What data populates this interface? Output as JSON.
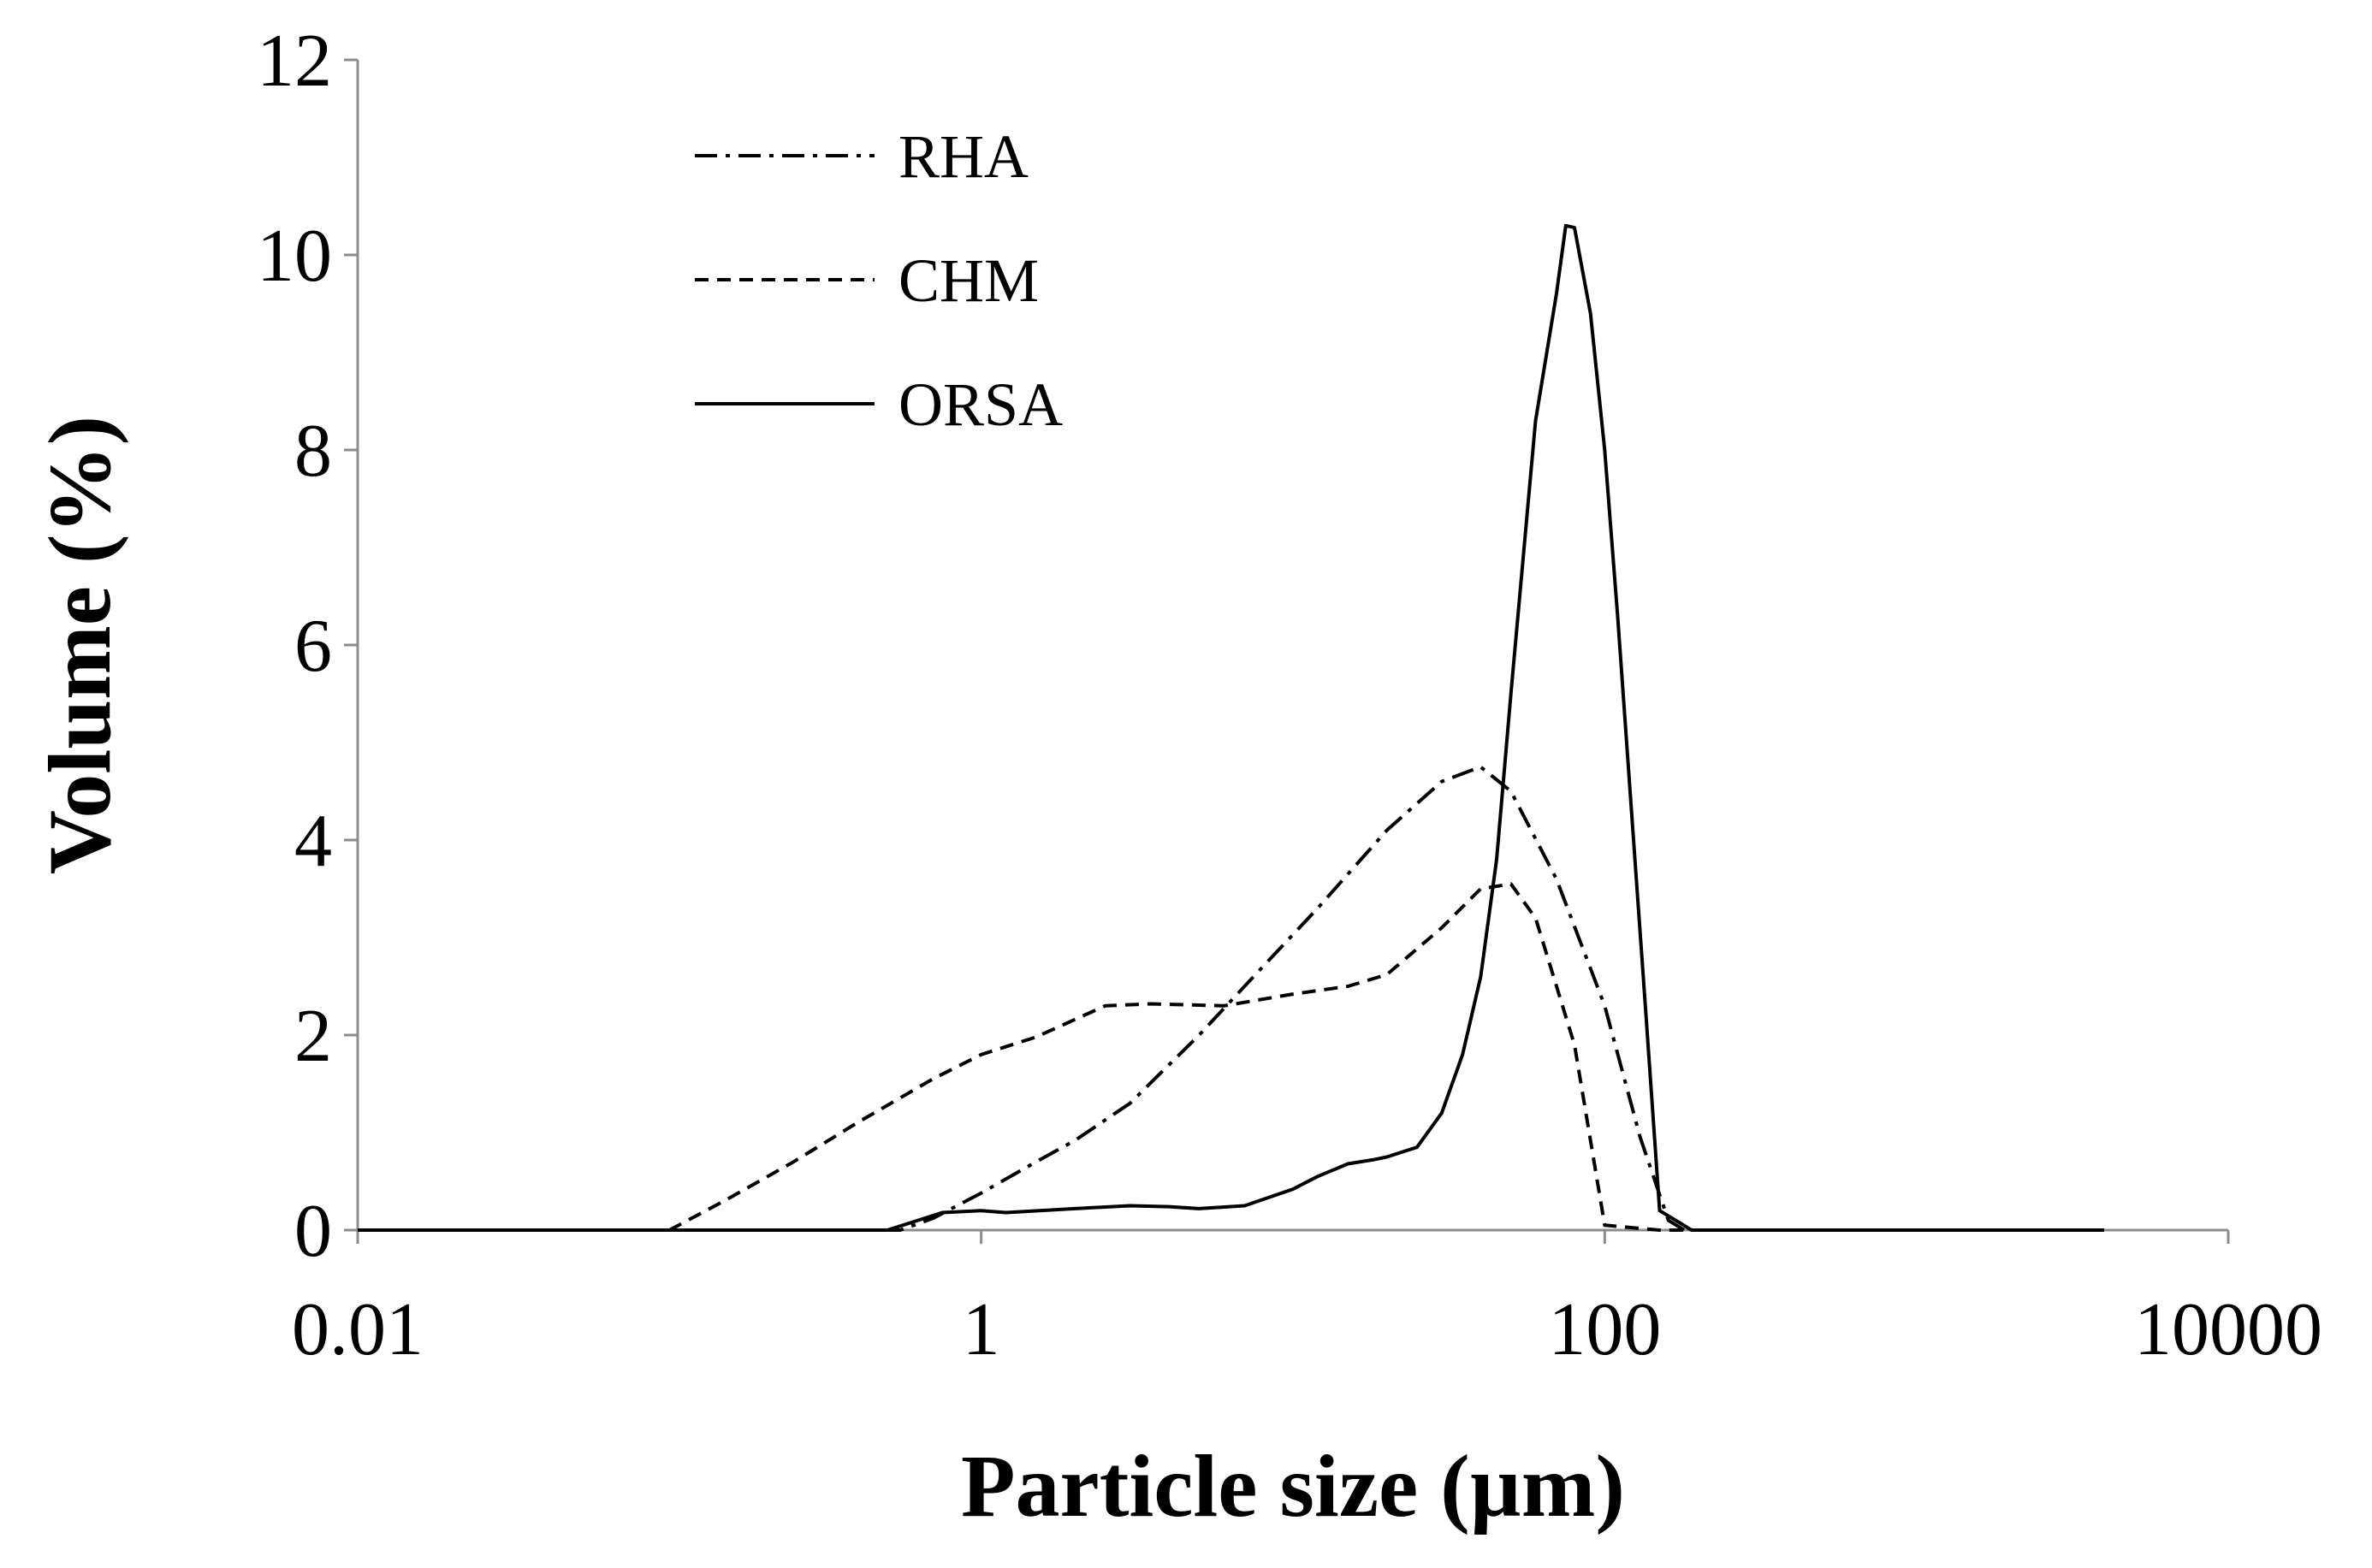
{
  "chart_data": {
    "type": "line",
    "title": "",
    "xlabel": "Particle size (µm)",
    "ylabel": "Volume (%)",
    "xscale": "log",
    "xlim": [
      0.01,
      10000
    ],
    "ylim": [
      0,
      12
    ],
    "xticks": [
      0.01,
      1,
      100,
      10000
    ],
    "xtick_labels": [
      "0.01",
      "1",
      "100",
      "10000"
    ],
    "yticks": [
      0,
      2,
      4,
      6,
      8,
      10,
      12
    ],
    "ytick_labels": [
      "0",
      "2",
      "4",
      "6",
      "8",
      "10",
      "12"
    ],
    "grid": false,
    "legend_position": "top-left",
    "series": [
      {
        "name": "RHA",
        "style": "dash-dot",
        "x": [
          0.01,
          0.55,
          0.7,
          1,
          1.5,
          2,
          3,
          5,
          8,
          12,
          20,
          30,
          40,
          50,
          70,
          100,
          130,
          160,
          180,
          4000
        ],
        "y": [
          0,
          0,
          0.12,
          0.38,
          0.7,
          0.92,
          1.3,
          2.0,
          2.7,
          3.3,
          4.1,
          4.6,
          4.75,
          4.5,
          3.6,
          2.3,
          0.95,
          0.1,
          0,
          0
        ]
      },
      {
        "name": "CHM",
        "style": "dashed",
        "x": [
          0.01,
          0.1,
          0.15,
          0.25,
          0.4,
          0.7,
          1,
          1.5,
          2.5,
          3.5,
          6,
          10,
          15,
          20,
          30,
          40,
          50,
          60,
          80,
          100,
          150,
          4000
        ],
        "y": [
          0,
          0,
          0.3,
          0.7,
          1.1,
          1.55,
          1.8,
          1.98,
          2.3,
          2.32,
          2.3,
          2.42,
          2.5,
          2.62,
          3.1,
          3.5,
          3.55,
          3.2,
          1.9,
          0.05,
          0,
          0
        ]
      },
      {
        "name": "ORSA",
        "style": "solid",
        "x": [
          0.01,
          0.5,
          0.6,
          0.75,
          1,
          1.2,
          2,
          3,
          4,
          5,
          7,
          10,
          12,
          15,
          18,
          20,
          25,
          30,
          35,
          40,
          45,
          50,
          60,
          70,
          75,
          80,
          90,
          100,
          110,
          135,
          150,
          190,
          4000
        ],
        "y": [
          0,
          0,
          0.08,
          0.18,
          0.2,
          0.18,
          0.22,
          0.25,
          0.24,
          0.22,
          0.25,
          0.42,
          0.55,
          0.68,
          0.72,
          0.75,
          0.85,
          1.2,
          1.8,
          2.6,
          3.8,
          5.5,
          8.3,
          9.6,
          10.3,
          10.28,
          9.4,
          8.0,
          6.3,
          2.3,
          0.2,
          0,
          0
        ]
      }
    ]
  }
}
